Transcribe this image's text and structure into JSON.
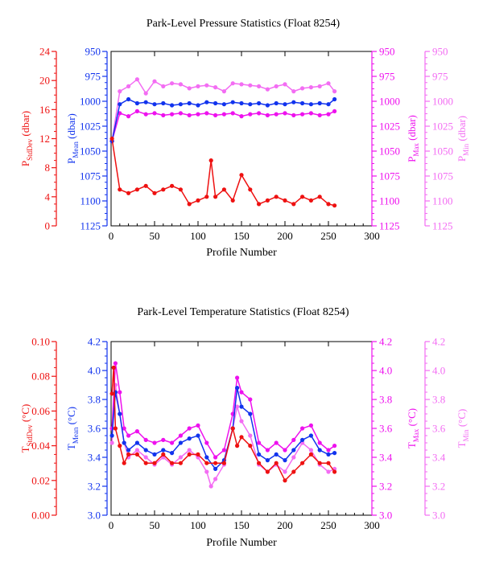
{
  "colors": {
    "red": "#ee1111",
    "blue": "#1133ee",
    "magenta": "#ee11ee",
    "pink": "#f36df3",
    "black": "#000000"
  },
  "chart_data": [
    {
      "type": "line",
      "title": "Park-Level Pressure Statistics (Float 8254)",
      "xlabel": "Profile Number",
      "xlim": [
        0,
        300
      ],
      "xticks": [
        "0",
        "50",
        "100",
        "150",
        "200",
        "250",
        "300"
      ],
      "grid": false,
      "axes": [
        {
          "id": "stddev",
          "label_main": "P",
          "label_sub": "StdDev",
          "label_unit": " (dbar)",
          "color": "red",
          "lim": [
            0,
            24
          ],
          "inverted": false,
          "ticks": [
            "0",
            "4",
            "8",
            "12",
            "16",
            "20",
            "24"
          ]
        },
        {
          "id": "mean",
          "label_main": "P",
          "label_sub": "Mean",
          "label_unit": " (dbar)",
          "color": "blue",
          "lim": [
            950,
            1125
          ],
          "inverted": true,
          "ticks": [
            "950",
            "975",
            "1000",
            "1025",
            "1050",
            "1075",
            "1100",
            "1125"
          ]
        },
        {
          "id": "max",
          "label_main": "P",
          "label_sub": "Max",
          "label_unit": " (dbar)",
          "color": "magenta",
          "lim": [
            950,
            1125
          ],
          "inverted": true,
          "ticks": [
            "950",
            "975",
            "1000",
            "1025",
            "1050",
            "1075",
            "1100",
            "1125"
          ]
        },
        {
          "id": "min",
          "label_main": "P",
          "label_sub": "Min",
          "label_unit": " (dbar)",
          "color": "pink",
          "lim": [
            950,
            1125
          ],
          "inverted": true,
          "ticks": [
            "950",
            "975",
            "1000",
            "1025",
            "1050",
            "1075",
            "1100",
            "1125"
          ]
        }
      ],
      "series": [
        {
          "axis": "min",
          "color": "pink",
          "x": [
            1,
            10,
            20,
            30,
            40,
            50,
            60,
            70,
            80,
            90,
            100,
            110,
            120,
            130,
            140,
            150,
            160,
            170,
            180,
            190,
            200,
            210,
            220,
            230,
            240,
            250,
            257
          ],
          "y": [
            1040,
            990,
            985,
            978,
            992,
            980,
            985,
            982,
            983,
            987,
            985,
            984,
            986,
            990,
            982,
            983,
            984,
            985,
            988,
            985,
            983,
            990,
            987,
            986,
            985,
            982,
            990
          ]
        },
        {
          "axis": "max",
          "color": "magenta",
          "x": [
            1,
            10,
            20,
            30,
            40,
            50,
            60,
            70,
            80,
            90,
            100,
            110,
            120,
            130,
            140,
            150,
            160,
            170,
            180,
            190,
            200,
            210,
            220,
            230,
            240,
            250,
            257
          ],
          "y": [
            1040,
            1012,
            1015,
            1010,
            1013,
            1012,
            1014,
            1013,
            1012,
            1014,
            1013,
            1012,
            1014,
            1013,
            1012,
            1015,
            1013,
            1012,
            1014,
            1013,
            1012,
            1014,
            1013,
            1012,
            1014,
            1013,
            1010
          ]
        },
        {
          "axis": "mean",
          "color": "blue",
          "x": [
            1,
            10,
            20,
            30,
            40,
            50,
            60,
            70,
            80,
            90,
            100,
            110,
            120,
            130,
            140,
            150,
            160,
            170,
            180,
            190,
            200,
            210,
            220,
            230,
            240,
            250,
            257
          ],
          "y": [
            1040,
            1003,
            998,
            1002,
            1001,
            1003,
            1002,
            1004,
            1003,
            1002,
            1004,
            1001,
            1002,
            1003,
            1001,
            1002,
            1003,
            1002,
            1004,
            1002,
            1003,
            1001,
            1002,
            1003,
            1002,
            1003,
            998
          ]
        },
        {
          "axis": "stddev",
          "color": "red",
          "x": [
            1,
            10,
            20,
            30,
            40,
            50,
            60,
            70,
            80,
            90,
            100,
            110,
            115,
            120,
            130,
            140,
            150,
            160,
            170,
            180,
            190,
            200,
            210,
            220,
            230,
            240,
            250,
            257
          ],
          "y": [
            12,
            5,
            4.5,
            5,
            5.5,
            4.5,
            5,
            5.5,
            5,
            3,
            3.5,
            4,
            9,
            4,
            5,
            3.5,
            7,
            5,
            3,
            3.5,
            4,
            3.5,
            3,
            4,
            3.5,
            4,
            3,
            2.8
          ]
        }
      ]
    },
    {
      "type": "line",
      "title": "Park-Level Temperature Statistics (Float 8254)",
      "xlabel": "Profile Number",
      "xlim": [
        0,
        300
      ],
      "xticks": [
        "0",
        "50",
        "100",
        "150",
        "200",
        "250",
        "300"
      ],
      "grid": false,
      "axes": [
        {
          "id": "stddev",
          "label_main": "T",
          "label_sub": "StdDev",
          "label_unit": " (°C)",
          "color": "red",
          "lim": [
            0,
            0.1
          ],
          "inverted": false,
          "ticks": [
            "0.00",
            "0.02",
            "0.04",
            "0.06",
            "0.08",
            "0.10"
          ]
        },
        {
          "id": "mean",
          "label_main": "T",
          "label_sub": "Mean",
          "label_unit": " (°C)",
          "color": "blue",
          "lim": [
            3.0,
            4.2
          ],
          "inverted": false,
          "ticks": [
            "3.0",
            "3.2",
            "3.4",
            "3.6",
            "3.8",
            "4.0",
            "4.2"
          ]
        },
        {
          "id": "max",
          "label_main": "T",
          "label_sub": "Max",
          "label_unit": " (°C)",
          "color": "magenta",
          "lim": [
            3.0,
            4.2
          ],
          "inverted": false,
          "ticks": [
            "3.0",
            "3.2",
            "3.4",
            "3.6",
            "3.8",
            "4.0",
            "4.2"
          ]
        },
        {
          "id": "min",
          "label_main": "T",
          "label_sub": "Min",
          "label_unit": " (°C)",
          "color": "pink",
          "lim": [
            3.0,
            4.2
          ],
          "inverted": false,
          "ticks": [
            "3.0",
            "3.2",
            "3.4",
            "3.6",
            "3.8",
            "4.0",
            "4.2"
          ]
        }
      ],
      "series": [
        {
          "axis": "min",
          "color": "pink",
          "x": [
            1,
            5,
            10,
            15,
            20,
            30,
            40,
            50,
            60,
            70,
            80,
            90,
            100,
            110,
            115,
            120,
            130,
            140,
            145,
            150,
            160,
            170,
            180,
            190,
            200,
            210,
            220,
            230,
            240,
            250,
            257
          ],
          "y": [
            3.5,
            3.9,
            3.7,
            3.5,
            3.4,
            3.45,
            3.4,
            3.35,
            3.4,
            3.35,
            3.4,
            3.45,
            3.4,
            3.3,
            3.2,
            3.25,
            3.35,
            3.6,
            3.75,
            3.65,
            3.55,
            3.35,
            3.3,
            3.35,
            3.3,
            3.4,
            3.5,
            3.45,
            3.35,
            3.3,
            3.32
          ]
        },
        {
          "axis": "max",
          "color": "magenta",
          "x": [
            1,
            5,
            10,
            15,
            20,
            30,
            40,
            50,
            60,
            70,
            80,
            90,
            100,
            110,
            120,
            130,
            140,
            145,
            150,
            160,
            170,
            180,
            190,
            200,
            210,
            220,
            230,
            240,
            250,
            257
          ],
          "y": [
            3.6,
            4.05,
            3.85,
            3.6,
            3.55,
            3.58,
            3.52,
            3.5,
            3.52,
            3.5,
            3.55,
            3.6,
            3.62,
            3.5,
            3.4,
            3.45,
            3.7,
            3.95,
            3.85,
            3.8,
            3.5,
            3.45,
            3.5,
            3.45,
            3.52,
            3.6,
            3.62,
            3.5,
            3.45,
            3.48
          ]
        },
        {
          "axis": "mean",
          "color": "blue",
          "x": [
            1,
            5,
            10,
            15,
            20,
            30,
            40,
            50,
            60,
            70,
            80,
            90,
            100,
            110,
            120,
            130,
            140,
            145,
            150,
            160,
            170,
            180,
            190,
            200,
            210,
            220,
            230,
            240,
            250,
            257
          ],
          "y": [
            3.55,
            3.85,
            3.7,
            3.5,
            3.45,
            3.5,
            3.45,
            3.42,
            3.45,
            3.43,
            3.5,
            3.53,
            3.55,
            3.4,
            3.32,
            3.38,
            3.6,
            3.88,
            3.75,
            3.7,
            3.42,
            3.38,
            3.42,
            3.38,
            3.45,
            3.52,
            3.55,
            3.45,
            3.42,
            3.43
          ]
        },
        {
          "axis": "stddev",
          "color": "red",
          "x": [
            1,
            3,
            5,
            10,
            15,
            20,
            30,
            40,
            50,
            60,
            70,
            80,
            90,
            100,
            110,
            120,
            130,
            140,
            145,
            150,
            160,
            170,
            180,
            190,
            200,
            210,
            220,
            230,
            240,
            250,
            257
          ],
          "y": [
            0.07,
            0.085,
            0.05,
            0.04,
            0.03,
            0.035,
            0.035,
            0.03,
            0.03,
            0.035,
            0.03,
            0.03,
            0.035,
            0.035,
            0.03,
            0.03,
            0.03,
            0.05,
            0.04,
            0.045,
            0.04,
            0.03,
            0.025,
            0.03,
            0.02,
            0.025,
            0.03,
            0.035,
            0.03,
            0.03,
            0.025
          ]
        }
      ]
    }
  ]
}
